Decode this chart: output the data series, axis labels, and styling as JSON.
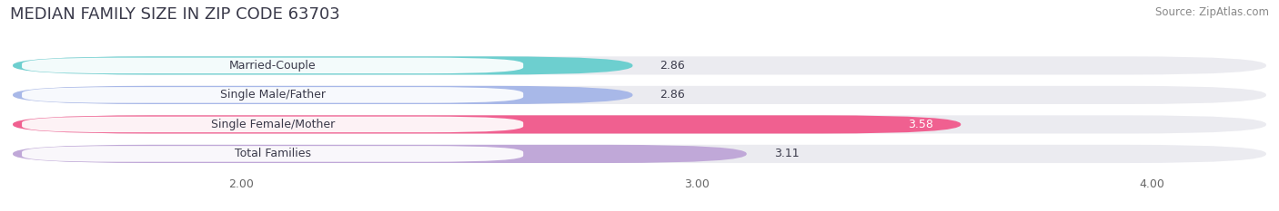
{
  "title": "MEDIAN FAMILY SIZE IN ZIP CODE 63703",
  "source": "Source: ZipAtlas.com",
  "categories": [
    "Married-Couple",
    "Single Male/Father",
    "Single Female/Mother",
    "Total Families"
  ],
  "values": [
    2.86,
    2.86,
    3.58,
    3.11
  ],
  "bar_colors": [
    "#6dcfcf",
    "#a8b8e8",
    "#f06090",
    "#c0a8d8"
  ],
  "xlim_min": 1.5,
  "xlim_max": 4.25,
  "xticks": [
    2.0,
    3.0,
    4.0
  ],
  "xtick_labels": [
    "2.00",
    "3.00",
    "4.00"
  ],
  "background_color": "#ffffff",
  "bar_bg_color": "#ebebf0",
  "title_fontsize": 13,
  "label_fontsize": 9,
  "value_fontsize": 9,
  "source_fontsize": 8.5,
  "title_color": "#3a3a4a",
  "source_color": "#888888",
  "label_color": "#3a3a4a",
  "value_color_dark": "#3a3a4a",
  "value_color_light": "#ffffff"
}
